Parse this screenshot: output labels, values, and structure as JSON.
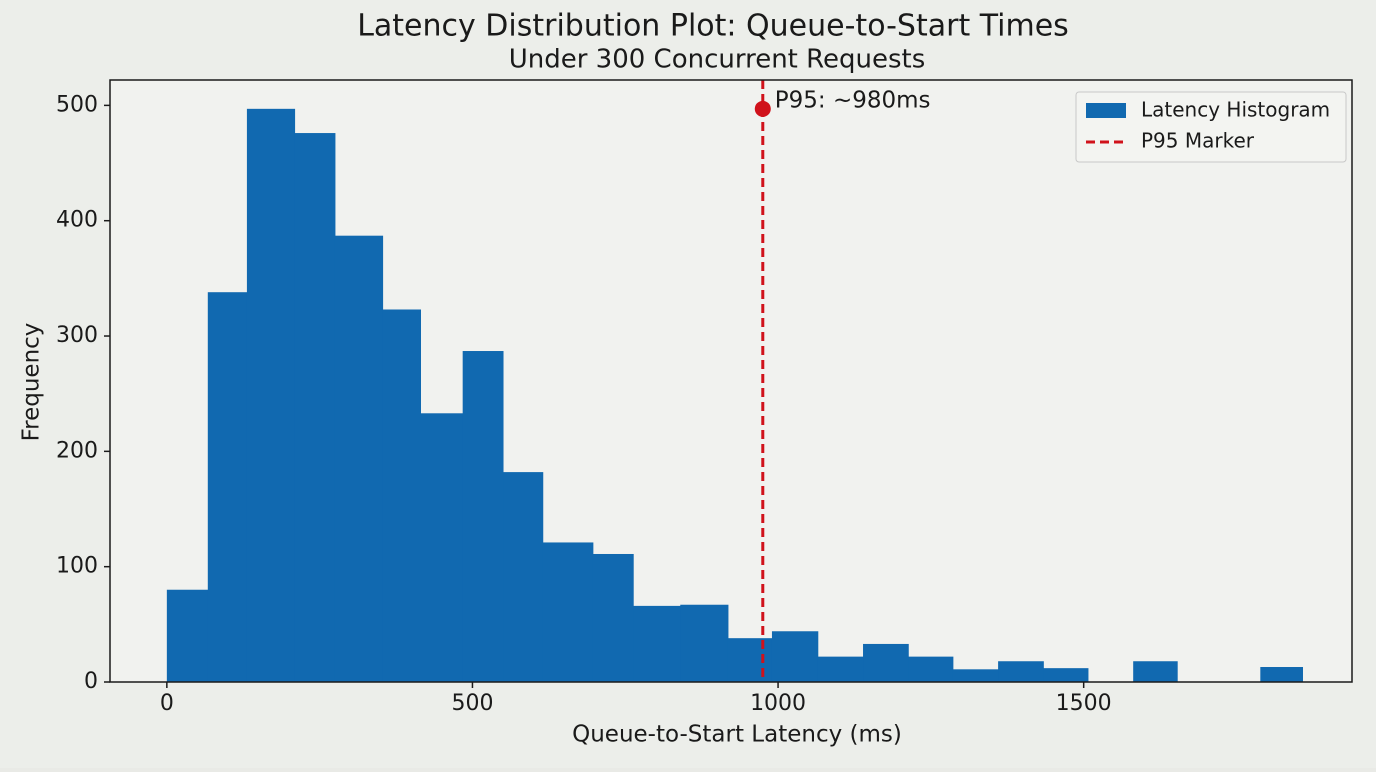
{
  "chart_data": {
    "type": "histogram",
    "title": "Latency Distribution Plot: Queue-to-Start Times",
    "subtitle": "Under 300 Concurrent Requests",
    "xlabel": "Queue-to-Start Latency (ms)",
    "ylabel": "Frequency",
    "bins": [
      0,
      67,
      131,
      209,
      275,
      353,
      415,
      484,
      550,
      615,
      697,
      763,
      840,
      918,
      990,
      1065,
      1139,
      1213,
      1286,
      1360,
      1434,
      1507,
      1581,
      1653,
      1789,
      1858
    ],
    "series": [
      {
        "name": "Latency Histogram",
        "color": "#1169b0",
        "values": [
          80,
          338,
          497,
          476,
          387,
          323,
          233,
          287,
          182,
          121,
          111,
          66,
          67,
          38,
          44,
          22,
          33,
          22,
          11,
          18,
          12,
          0,
          18,
          0,
          13
        ]
      }
    ],
    "marker": {
      "name": "P95 Marker",
      "color": "#d0121b",
      "x": 975,
      "y": 497,
      "label": "P95: ~980ms"
    },
    "xlim": [
      -93,
      1939
    ],
    "ylim": [
      0,
      522
    ],
    "xticks": [
      0,
      500,
      1000,
      1500
    ],
    "yticks": [
      0,
      100,
      200,
      300,
      400,
      500
    ],
    "legend": "upper right"
  }
}
